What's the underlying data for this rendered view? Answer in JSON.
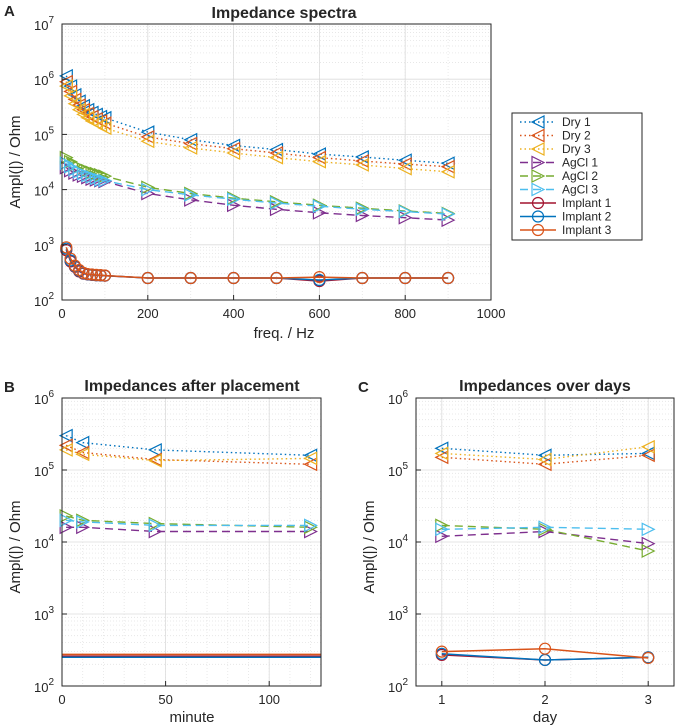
{
  "colors": {
    "Dry 1": "#0072BD",
    "Dry 2": "#D95319",
    "Dry 3": "#EDB120",
    "AgCl 1": "#7E2F8E",
    "AgCl 2": "#77AC30",
    "AgCl 3": "#4DBEEE",
    "Implant 1": "#A2142F",
    "Implant 2": "#0072BD",
    "Implant 3": "#D95319"
  },
  "panels": [
    {
      "letter": "A",
      "title": "Impedance spectra",
      "xlabel": "freq. / Hz",
      "ylabel": "Ampl(|) / Ohm"
    },
    {
      "letter": "B",
      "title": "Impedances after placement",
      "xlabel": "minute",
      "ylabel": "Ampl(|) / Ohm"
    },
    {
      "letter": "C",
      "title": "Impedances over days",
      "xlabel": "day",
      "ylabel": "Ampl(|) / Ohm"
    }
  ],
  "legend": [
    "Dry 1",
    "Dry 2",
    "Dry 3",
    "AgCl 1",
    "AgCl 2",
    "AgCl 3",
    "Implant 1",
    "Implant 2",
    "Implant 3"
  ],
  "chart_data": [
    {
      "type": "line",
      "panel": "A",
      "title": "Impedance spectra",
      "xlabel": "freq. / Hz",
      "ylabel": "Ampl(|) / Ohm",
      "yscale": "log",
      "xlim": [
        0,
        1000
      ],
      "ylim": [
        100,
        10000000
      ],
      "xticks": [
        0,
        200,
        400,
        600,
        800,
        1000
      ],
      "ytick_exponents": [
        2,
        3,
        4,
        5,
        6,
        7
      ],
      "legend_position": "outside-right",
      "series": [
        {
          "name": "Dry 1",
          "style": "dotted",
          "marker": "triangle-left",
          "x": [
            10,
            20,
            30,
            40,
            50,
            60,
            70,
            80,
            90,
            100,
            200,
            300,
            400,
            500,
            600,
            700,
            800,
            900
          ],
          "y": [
            1150000,
            750000,
            520000,
            400000,
            330000,
            280000,
            250000,
            230000,
            210000,
            200000,
            110000,
            80000,
            63000,
            53000,
            44000,
            39000,
            34000,
            30000
          ]
        },
        {
          "name": "Dry 2",
          "style": "dotted",
          "marker": "triangle-left",
          "x": [
            10,
            20,
            30,
            40,
            50,
            60,
            70,
            80,
            90,
            100,
            200,
            300,
            400,
            500,
            600,
            700,
            800,
            900
          ],
          "y": [
            900000,
            600000,
            430000,
            340000,
            280000,
            240000,
            210000,
            190000,
            175000,
            160000,
            90000,
            68000,
            55000,
            46000,
            38000,
            33000,
            29000,
            26000
          ]
        },
        {
          "name": "Dry 3",
          "style": "dotted",
          "marker": "triangle-left",
          "x": [
            10,
            20,
            30,
            40,
            50,
            60,
            70,
            80,
            90,
            100,
            200,
            300,
            400,
            500,
            600,
            700,
            800,
            900
          ],
          "y": [
            750000,
            500000,
            360000,
            280000,
            230000,
            200000,
            175000,
            160000,
            145000,
            130000,
            75000,
            57000,
            46000,
            38000,
            32000,
            28000,
            24000,
            21000
          ]
        },
        {
          "name": "AgCl 1",
          "style": "dashed",
          "marker": "triangle-right",
          "x": [
            10,
            20,
            30,
            40,
            50,
            60,
            70,
            80,
            90,
            100,
            200,
            300,
            400,
            500,
            600,
            700,
            800,
            900
          ],
          "y": [
            25000,
            22000,
            20000,
            18500,
            17500,
            16500,
            15500,
            15000,
            14500,
            14000,
            8500,
            6500,
            5200,
            4400,
            3800,
            3400,
            3100,
            2800
          ]
        },
        {
          "name": "AgCl 2",
          "style": "dashed",
          "marker": "triangle-right",
          "x": [
            10,
            20,
            30,
            40,
            50,
            60,
            70,
            80,
            90,
            100,
            200,
            300,
            400,
            500,
            600,
            700,
            800,
            900
          ],
          "y": [
            38000,
            32000,
            28000,
            25500,
            23500,
            22000,
            20500,
            19500,
            18500,
            17500,
            11000,
            8500,
            7000,
            6000,
            5200,
            4600,
            4100,
            3700
          ]
        },
        {
          "name": "AgCl 3",
          "style": "dashed",
          "marker": "triangle-right",
          "x": [
            10,
            20,
            30,
            40,
            50,
            60,
            70,
            80,
            90,
            100,
            200,
            300,
            400,
            500,
            600,
            700,
            800,
            900
          ],
          "y": [
            30000,
            26000,
            23000,
            21000,
            19500,
            18000,
            17000,
            16000,
            15000,
            14500,
            10000,
            8000,
            6700,
            5700,
            5000,
            4400,
            4000,
            3600
          ]
        },
        {
          "name": "Implant 1",
          "style": "solid",
          "marker": "circle",
          "x": [
            10,
            20,
            30,
            40,
            50,
            60,
            70,
            80,
            90,
            100,
            200,
            300,
            400,
            500,
            600,
            700,
            800,
            900
          ],
          "y": [
            800,
            500,
            400,
            330,
            300,
            290,
            285,
            280,
            278,
            275,
            250,
            250,
            250,
            250,
            220,
            250,
            250,
            250
          ]
        },
        {
          "name": "Implant 2",
          "style": "solid",
          "marker": "circle",
          "x": [
            10,
            20,
            30,
            40,
            50,
            60,
            70,
            80,
            90,
            100,
            200,
            300,
            400,
            500,
            600,
            700,
            800,
            900
          ],
          "y": [
            850,
            520,
            410,
            340,
            305,
            292,
            287,
            282,
            280,
            277,
            250,
            250,
            250,
            250,
            230,
            250,
            250,
            250
          ]
        },
        {
          "name": "Implant 3",
          "style": "solid",
          "marker": "circle",
          "x": [
            10,
            20,
            30,
            40,
            50,
            60,
            70,
            80,
            90,
            100,
            200,
            300,
            400,
            500,
            600,
            700,
            800,
            900
          ],
          "y": [
            900,
            560,
            420,
            350,
            310,
            295,
            290,
            285,
            282,
            278,
            250,
            250,
            250,
            250,
            260,
            250,
            250,
            250
          ]
        }
      ]
    },
    {
      "type": "line",
      "panel": "B",
      "title": "Impedances after placement",
      "xlabel": "minute",
      "ylabel": "Ampl(|) / Ohm",
      "yscale": "log",
      "xlim": [
        0,
        125
      ],
      "ylim": [
        100,
        1000000
      ],
      "xticks": [
        0,
        50,
        100
      ],
      "ytick_exponents": [
        2,
        3,
        4,
        5,
        6
      ],
      "series": [
        {
          "name": "Dry 1",
          "style": "dotted",
          "marker": "triangle-left",
          "x": [
            2,
            10,
            45,
            120
          ],
          "y": [
            300000,
            240000,
            190000,
            160000
          ]
        },
        {
          "name": "Dry 2",
          "style": "dotted",
          "marker": "triangle-left",
          "x": [
            2,
            10,
            45,
            120
          ],
          "y": [
            220000,
            175000,
            140000,
            120000
          ]
        },
        {
          "name": "Dry 3",
          "style": "dotted",
          "marker": "triangle-left",
          "x": [
            2,
            10,
            45,
            120
          ],
          "y": [
            190000,
            165000,
            135000,
            145000
          ]
        },
        {
          "name": "AgCl 1",
          "style": "dashed",
          "marker": "triangle-right",
          "x": [
            2,
            10,
            45,
            120
          ],
          "y": [
            16000,
            16000,
            14000,
            14000
          ]
        },
        {
          "name": "AgCl 2",
          "style": "dashed",
          "marker": "triangle-right",
          "x": [
            2,
            10,
            45,
            120
          ],
          "y": [
            23000,
            20000,
            18000,
            16000
          ]
        },
        {
          "name": "AgCl 3",
          "style": "dashed",
          "marker": "triangle-right",
          "x": [
            2,
            10,
            45,
            120
          ],
          "y": [
            20000,
            19000,
            17000,
            17000
          ]
        },
        {
          "name": "Implant 1",
          "style": "solid",
          "marker": "none",
          "x": [
            0,
            125
          ],
          "y": [
            260,
            260
          ]
        },
        {
          "name": "Implant 2",
          "style": "solid",
          "marker": "none",
          "x": [
            0,
            125
          ],
          "y": [
            250,
            250
          ]
        },
        {
          "name": "Implant 3",
          "style": "solid",
          "marker": "none",
          "x": [
            0,
            125
          ],
          "y": [
            275,
            275
          ]
        }
      ]
    },
    {
      "type": "line",
      "panel": "C",
      "title": "Impedances over days",
      "xlabel": "day",
      "ylabel": "Ampl(|) / Ohm",
      "yscale": "log",
      "xlim": [
        0.75,
        3.25
      ],
      "ylim": [
        100,
        1000000
      ],
      "xticks": [
        1,
        2,
        3
      ],
      "ytick_exponents": [
        2,
        3,
        4,
        5,
        6
      ],
      "series": [
        {
          "name": "Dry 1",
          "style": "dotted",
          "marker": "triangle-left",
          "x": [
            1,
            2,
            3
          ],
          "y": [
            200000,
            160000,
            170000
          ]
        },
        {
          "name": "Dry 2",
          "style": "dotted",
          "marker": "triangle-left",
          "x": [
            1,
            2,
            3
          ],
          "y": [
            150000,
            120000,
            160000
          ]
        },
        {
          "name": "Dry 3",
          "style": "dotted",
          "marker": "triangle-left",
          "x": [
            1,
            2,
            3
          ],
          "y": [
            170000,
            140000,
            210000
          ]
        },
        {
          "name": "AgCl 1",
          "style": "dashed",
          "marker": "triangle-right",
          "x": [
            1,
            2,
            3
          ],
          "y": [
            12000,
            14000,
            9500
          ]
        },
        {
          "name": "AgCl 2",
          "style": "dashed",
          "marker": "triangle-right",
          "x": [
            1,
            2,
            3
          ],
          "y": [
            17000,
            15000,
            7500
          ]
        },
        {
          "name": "AgCl 3",
          "style": "dashed",
          "marker": "triangle-right",
          "x": [
            1,
            2,
            3
          ],
          "y": [
            15000,
            16000,
            15000
          ]
        },
        {
          "name": "Implant 1",
          "style": "solid",
          "marker": "circle",
          "x": [
            1,
            2,
            3
          ],
          "y": [
            270,
            230,
            250
          ]
        },
        {
          "name": "Implant 2",
          "style": "solid",
          "marker": "circle",
          "x": [
            1,
            2,
            3
          ],
          "y": [
            280,
            230,
            250
          ]
        },
        {
          "name": "Implant 3",
          "style": "solid",
          "marker": "circle",
          "x": [
            1,
            2,
            3
          ],
          "y": [
            300,
            330,
            245
          ]
        }
      ]
    }
  ]
}
